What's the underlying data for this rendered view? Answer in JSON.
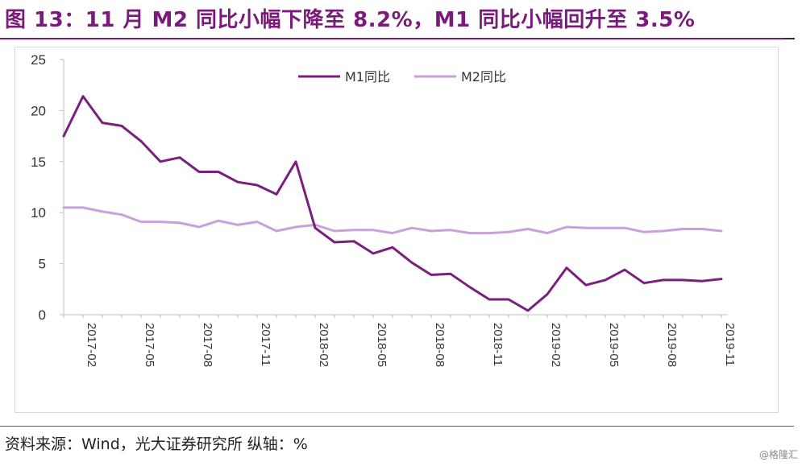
{
  "figure": {
    "title": "图 13：11 月 M2 同比小幅下降至 8.2%，M1 同比小幅回升至 3.5%",
    "source": "资料来源：Wind，光大证券研究所  纵轴：%",
    "watermark": "@格隆汇"
  },
  "chart_data": {
    "type": "line",
    "title": "",
    "xlabel": "",
    "ylabel": "",
    "ylim": [
      0,
      25
    ],
    "yticks": [
      0,
      5,
      10,
      15,
      20,
      25
    ],
    "grid": false,
    "legend_position": "top-right",
    "x": [
      "2017-01",
      "2017-02",
      "2017-03",
      "2017-04",
      "2017-05",
      "2017-06",
      "2017-07",
      "2017-08",
      "2017-09",
      "2017-10",
      "2017-11",
      "2017-12",
      "2018-01",
      "2018-02",
      "2018-03",
      "2018-04",
      "2018-05",
      "2018-06",
      "2018-07",
      "2018-08",
      "2018-09",
      "2018-10",
      "2018-11",
      "2018-12",
      "2019-01",
      "2019-02",
      "2019-03",
      "2019-04",
      "2019-05",
      "2019-06",
      "2019-07",
      "2019-08",
      "2019-09",
      "2019-10",
      "2019-11"
    ],
    "xtick_labels": [
      "2017-02",
      "2017-05",
      "2017-08",
      "2017-11",
      "2018-02",
      "2018-05",
      "2018-08",
      "2018-11",
      "2019-02",
      "2019-05",
      "2019-08",
      "2019-11"
    ],
    "series": [
      {
        "name": "M1同比",
        "color": "#7b1f7f",
        "values": [
          17.5,
          21.4,
          18.8,
          18.5,
          17.0,
          15.0,
          15.4,
          14.0,
          14.0,
          13.0,
          12.7,
          11.8,
          15.0,
          8.5,
          7.1,
          7.2,
          6.0,
          6.6,
          5.1,
          3.9,
          4.0,
          2.7,
          1.5,
          1.5,
          0.4,
          2.0,
          4.6,
          2.9,
          3.4,
          4.4,
          3.1,
          3.4,
          3.4,
          3.3,
          3.5
        ]
      },
      {
        "name": "M2同比",
        "color": "#c9a0dc",
        "values": [
          10.5,
          10.5,
          10.1,
          9.8,
          9.1,
          9.1,
          9.0,
          8.6,
          9.2,
          8.8,
          9.1,
          8.2,
          8.6,
          8.8,
          8.2,
          8.3,
          8.3,
          8.0,
          8.5,
          8.2,
          8.3,
          8.0,
          8.0,
          8.1,
          8.4,
          8.0,
          8.6,
          8.5,
          8.5,
          8.5,
          8.1,
          8.2,
          8.4,
          8.4,
          8.2
        ]
      }
    ]
  }
}
